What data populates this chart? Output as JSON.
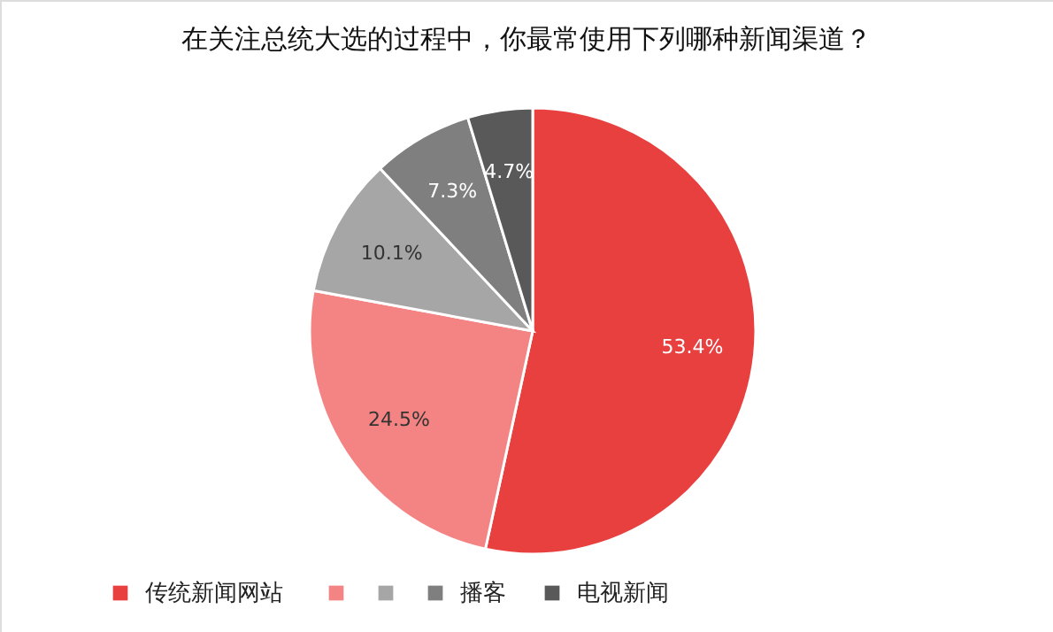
{
  "chart_data": {
    "type": "pie",
    "title": "在关注总统大选的过程中，你最常使用下列哪种新闻渠道？",
    "categories": [
      "传统新闻网站",
      null,
      null,
      "播客",
      "电视新闻"
    ],
    "values": [
      53.4,
      24.5,
      10.1,
      7.3,
      4.7
    ],
    "colors": [
      "#e8403f",
      "#f38483",
      "#a6a6a6",
      "#7f7f7f",
      "#595959"
    ],
    "value_labels": [
      "53.4%",
      "24.5%",
      "10.1%",
      "7.3%",
      "4.7%"
    ],
    "legend": "bottom"
  }
}
